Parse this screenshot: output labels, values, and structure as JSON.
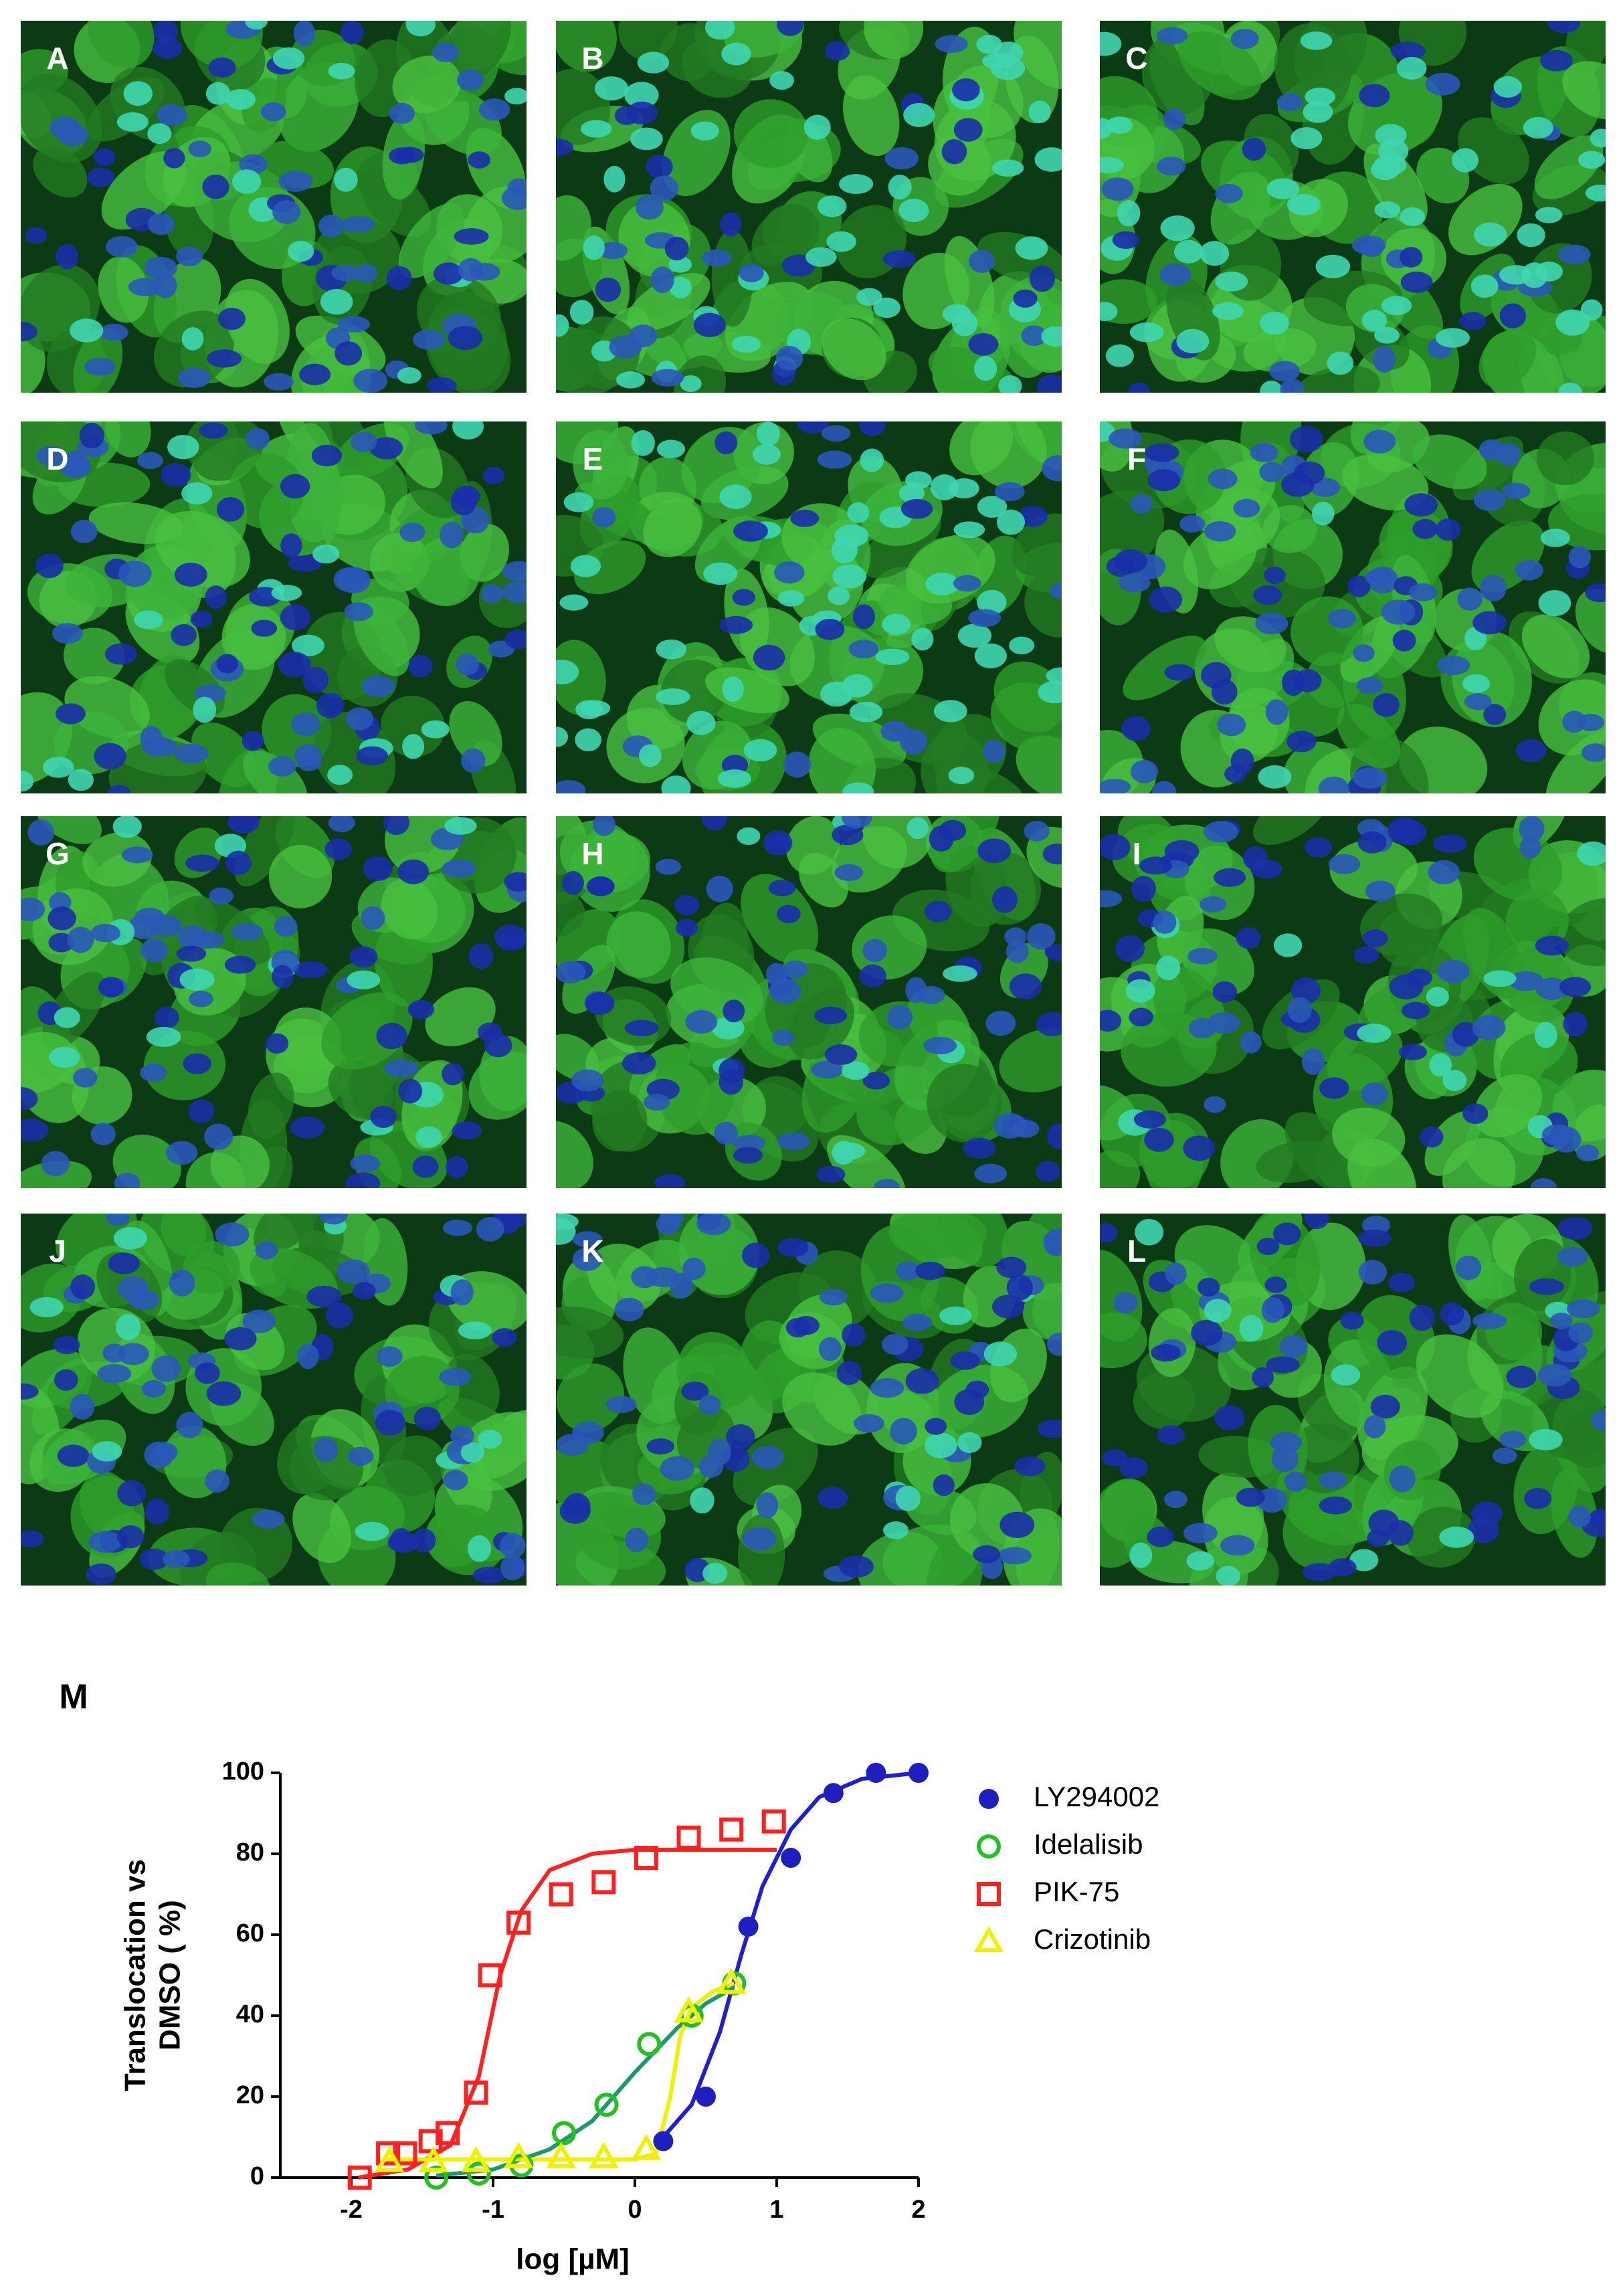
{
  "panels": [
    "A",
    "B",
    "C",
    "D",
    "E",
    "F",
    "G",
    "H",
    "I",
    "J",
    "K",
    "L"
  ],
  "chart_data": {
    "type": "scatter",
    "label": "M",
    "xlabel": "log [µM]",
    "ylabel": [
      "Translocation vs",
      "DMSO ( %)"
    ],
    "xlim": [
      -2.5,
      2
    ],
    "ylim": [
      0,
      100
    ],
    "xticks": [
      -2,
      -1,
      0,
      1,
      2
    ],
    "yticks": [
      0,
      20,
      40,
      60,
      80,
      100
    ],
    "series": [
      {
        "name": "LY294002",
        "color": "#1f1fbf",
        "fit_color": "#1f1fd0",
        "marker": "filled-circle",
        "x": [
          0.2,
          0.5,
          0.8,
          1.1,
          1.4,
          1.7,
          2.0
        ],
        "values": [
          9,
          20,
          62,
          79,
          95,
          100,
          100
        ],
        "fit_x": [
          0.15,
          0.4,
          0.6,
          0.75,
          0.9,
          1.1,
          1.3,
          1.6,
          2.0
        ],
        "fit_values": [
          8,
          18,
          36,
          55,
          72,
          86,
          94,
          98.5,
          100
        ]
      },
      {
        "name": "Idelalisib",
        "color": "#22c022",
        "fit_color": "#1a9a6a",
        "marker": "circle",
        "x": [
          -1.4,
          -1.1,
          -0.8,
          -0.5,
          -0.2,
          0.1,
          0.4,
          0.7
        ],
        "values": [
          0,
          1,
          3,
          11,
          18,
          33,
          40,
          48
        ],
        "fit_x": [
          -1.4,
          -1.0,
          -0.6,
          -0.3,
          0.0,
          0.3,
          0.5,
          0.7
        ],
        "fit_values": [
          0.5,
          2,
          7,
          14,
          26,
          37,
          43,
          47
        ]
      },
      {
        "name": "PIK-75",
        "color": "#ff2020",
        "fit_color": "#ff2020",
        "marker": "square",
        "x": [
          -1.94,
          -1.74,
          -1.62,
          -1.44,
          -1.32,
          -1.12,
          -1.02,
          -0.82,
          -0.52,
          -0.22,
          0.08,
          0.38,
          0.68,
          0.98
        ],
        "values": [
          0,
          6,
          6,
          9,
          11,
          21,
          50,
          63,
          70,
          73,
          79,
          84,
          86,
          88
        ],
        "fit_x": [
          -1.95,
          -1.6,
          -1.3,
          -1.1,
          -0.95,
          -0.8,
          -0.6,
          -0.3,
          0.0,
          1.0
        ],
        "fit_values": [
          0,
          2,
          8,
          25,
          50,
          66,
          76,
          80,
          81,
          81
        ]
      },
      {
        "name": "Crizotinib",
        "color": "#f0f000",
        "fit_color": "#f0f000",
        "marker": "triangle",
        "x": [
          -1.73,
          -1.42,
          -1.12,
          -0.82,
          -0.52,
          -0.22,
          0.08,
          0.38,
          0.68
        ],
        "values": [
          4,
          4,
          4,
          5,
          5,
          5,
          7,
          41,
          48
        ],
        "fit_x": [
          -1.75,
          0.0,
          0.15,
          0.25,
          0.32,
          0.4,
          0.55,
          0.7
        ],
        "fit_values": [
          4.5,
          4.5,
          6,
          20,
          35,
          42,
          46,
          48
        ]
      }
    ]
  }
}
